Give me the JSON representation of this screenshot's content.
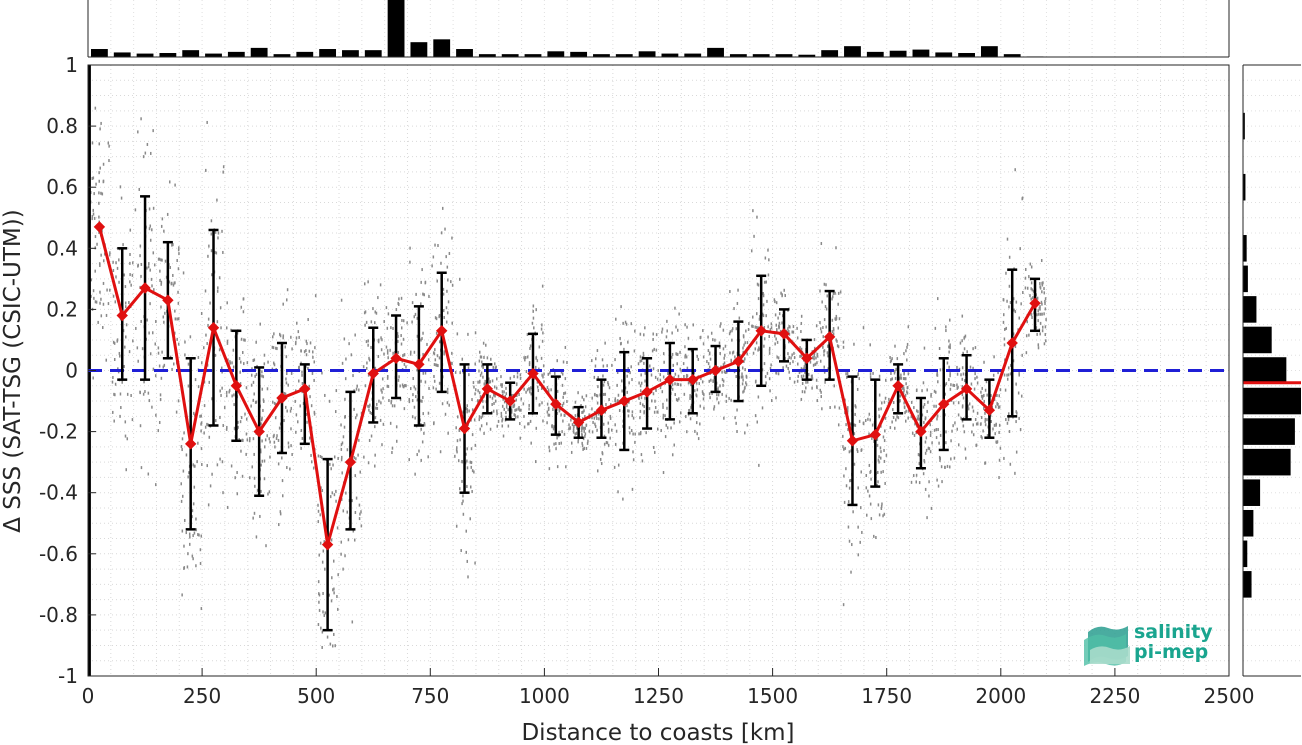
{
  "chart_data": {
    "type": "line",
    "xlabel": "Distance to coasts [km]",
    "ylabel": "Δ SSS (SAT-TSG (CSIC-UTM))",
    "xlim": [
      0,
      2500
    ],
    "ylim": [
      -1,
      1
    ],
    "xticks": [
      0,
      250,
      500,
      750,
      1000,
      1250,
      1500,
      1750,
      2000,
      2250,
      2500
    ],
    "yticks": [
      -1,
      -0.8,
      -0.6,
      -0.4,
      -0.2,
      0,
      0.2,
      0.4,
      0.6,
      0.8,
      1
    ],
    "xtick_labels": [
      "0",
      "250",
      "500",
      "750",
      "1000",
      "1250",
      "1500",
      "1750",
      "2000",
      "2250",
      "2500"
    ],
    "ytick_labels": [
      "-1",
      "-0.8",
      "-0.6",
      "-0.4",
      "-0.2",
      "0",
      "0.2",
      "0.4",
      "0.6",
      "0.8",
      "1"
    ],
    "grid": true,
    "zero_reference_line": {
      "y": 0,
      "color": "#1f1fd6",
      "style": "dashed"
    },
    "series": [
      {
        "color": "#e01010",
        "marker": "diamond",
        "x": [
          25,
          75,
          125,
          175,
          225,
          275,
          325,
          375,
          425,
          475,
          525,
          575,
          625,
          675,
          725,
          775,
          825,
          875,
          925,
          975,
          1025,
          1075,
          1125,
          1175,
          1225,
          1275,
          1325,
          1375,
          1425,
          1475,
          1525,
          1575,
          1625,
          1675,
          1725,
          1775,
          1825,
          1875,
          1925,
          1975,
          2025,
          2075
        ],
        "y": [
          0.47,
          0.18,
          0.27,
          0.23,
          -0.24,
          0.14,
          -0.05,
          -0.2,
          -0.09,
          -0.06,
          -0.57,
          -0.3,
          -0.01,
          0.04,
          0.02,
          0.13,
          -0.19,
          -0.06,
          -0.1,
          -0.01,
          -0.11,
          -0.17,
          -0.13,
          -0.1,
          -0.07,
          -0.03,
          -0.03,
          0.0,
          0.03,
          0.13,
          0.12,
          0.04,
          0.11,
          -0.23,
          -0.21,
          -0.05,
          -0.2,
          -0.11,
          -0.06,
          -0.13,
          0.09,
          0.22
        ],
        "err_low": [
          null,
          -0.03,
          -0.03,
          0.04,
          -0.52,
          -0.18,
          -0.23,
          -0.41,
          -0.27,
          -0.24,
          -0.85,
          -0.52,
          -0.17,
          -0.09,
          -0.18,
          -0.07,
          -0.4,
          -0.14,
          -0.16,
          -0.14,
          -0.21,
          -0.22,
          -0.22,
          -0.26,
          -0.19,
          -0.16,
          -0.14,
          -0.07,
          -0.1,
          -0.05,
          0.03,
          -0.03,
          -0.03,
          -0.44,
          -0.38,
          -0.14,
          -0.32,
          -0.26,
          -0.16,
          -0.22,
          -0.15,
          0.13
        ],
        "err_high": [
          null,
          0.4,
          0.57,
          0.42,
          0.04,
          0.46,
          0.13,
          0.01,
          0.09,
          0.02,
          -0.29,
          -0.07,
          0.14,
          0.18,
          0.21,
          0.32,
          0.02,
          0.02,
          -0.04,
          0.12,
          -0.02,
          -0.12,
          -0.03,
          0.06,
          0.04,
          0.09,
          0.07,
          0.08,
          0.16,
          0.31,
          0.2,
          0.1,
          0.26,
          -0.02,
          -0.03,
          0.02,
          -0.09,
          0.04,
          0.05,
          -0.03,
          0.33,
          0.3
        ]
      }
    ],
    "top_histogram": {
      "x": [
        25,
        75,
        125,
        175,
        225,
        275,
        325,
        375,
        425,
        475,
        525,
        575,
        625,
        675,
        725,
        775,
        825,
        875,
        925,
        975,
        1025,
        1075,
        1125,
        1175,
        1225,
        1275,
        1325,
        1375,
        1425,
        1475,
        1525,
        1575,
        1625,
        1675,
        1725,
        1775,
        1825,
        1875,
        1925,
        1975,
        2025,
        2075,
        2125,
        2175,
        2225,
        2275,
        2325,
        2375,
        2425,
        2475
      ],
      "counts": [
        14,
        8,
        6,
        7,
        12,
        6,
        9,
        16,
        5,
        9,
        14,
        12,
        12,
        100,
        26,
        31,
        14,
        5,
        5,
        5,
        10,
        9,
        5,
        5,
        10,
        6,
        6,
        16,
        5,
        5,
        5,
        4,
        12,
        19,
        9,
        11,
        13,
        8,
        7,
        19,
        5,
        1,
        0,
        0,
        0,
        0,
        0,
        0,
        0,
        0
      ]
    },
    "right_histogram": {
      "bin_centers": [
        0.8,
        0.6,
        0.4,
        0.3,
        0.2,
        0.1,
        0.0,
        -0.1,
        -0.2,
        -0.3,
        -0.4,
        -0.5,
        -0.6,
        -0.7
      ],
      "counts": [
        3,
        4,
        6,
        8,
        22,
        47,
        71,
        95,
        85,
        78,
        28,
        17,
        7,
        14
      ],
      "mean_line": {
        "y": -0.04,
        "color": "#e01010"
      }
    }
  },
  "logo": {
    "line1": "salinity",
    "line2": "pi-mep"
  }
}
